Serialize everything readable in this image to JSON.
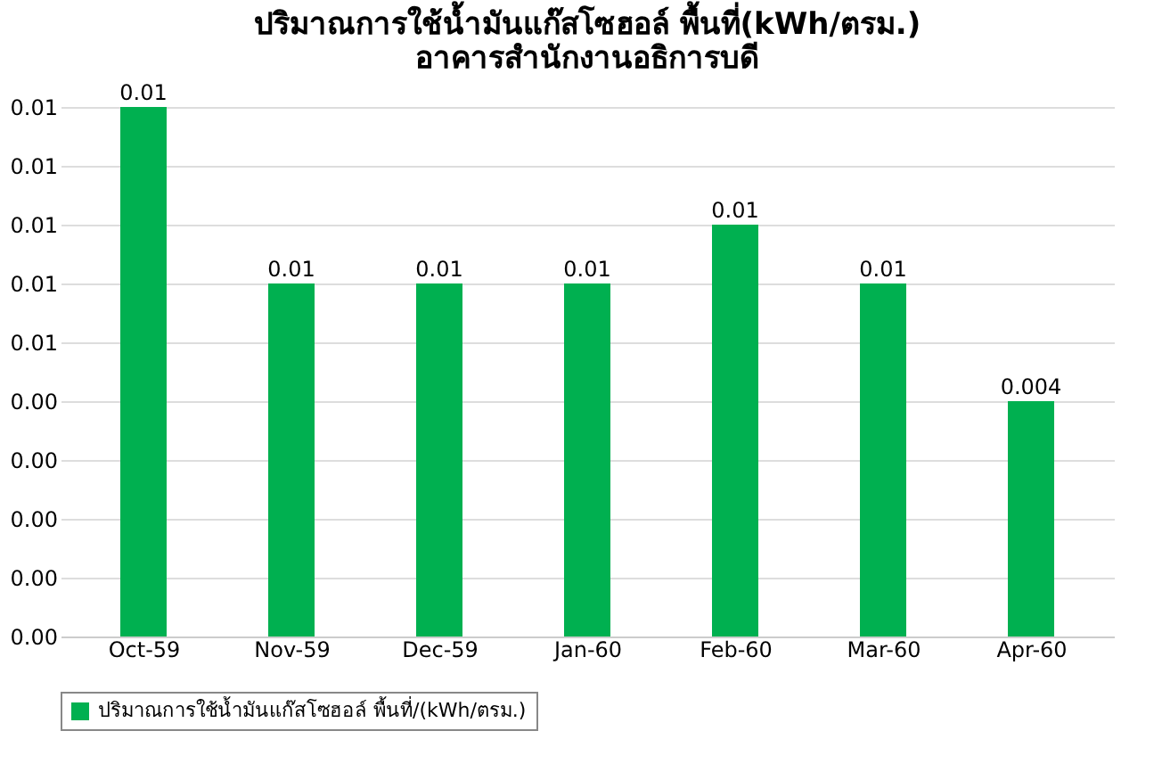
{
  "chart_data": {
    "type": "bar",
    "title": "ปริมาณการใช้น้ำมันแก๊สโซฮอล์  พื้นที่(kWh/ตรม.)\nอาคารสำนักงานอธิการบดี",
    "categories": [
      "Oct-59",
      "Nov-59",
      "Dec-59",
      "Jan-60",
      "Feb-60",
      "Mar-60",
      "Apr-60"
    ],
    "series": [
      {
        "name": "ปริมาณการใช้น้ำมันแก๊สโซฮอล์ พื้นที่/(kWh/ตรม.)",
        "color": "#00b050",
        "values": [
          0.009,
          0.006,
          0.006,
          0.006,
          0.007,
          0.006,
          0.004
        ],
        "value_labels": [
          "0.01",
          "0.01",
          "0.01",
          "0.01",
          "0.01",
          "0.01",
          "0.004"
        ]
      }
    ],
    "ylim": [
      0,
      0.009
    ],
    "yticks": [
      {
        "value": 0,
        "label": "0.00"
      },
      {
        "value": 0.001,
        "label": "0.00"
      },
      {
        "value": 0.002,
        "label": "0.00"
      },
      {
        "value": 0.003,
        "label": "0.00"
      },
      {
        "value": 0.004,
        "label": "0.00"
      },
      {
        "value": 0.005,
        "label": "0.01"
      },
      {
        "value": 0.006,
        "label": "0.01"
      },
      {
        "value": 0.007,
        "label": "0.01"
      },
      {
        "value": 0.008,
        "label": "0.01"
      },
      {
        "value": 0.009,
        "label": "0.01"
      }
    ],
    "grid": "y",
    "legend": "bottom"
  }
}
